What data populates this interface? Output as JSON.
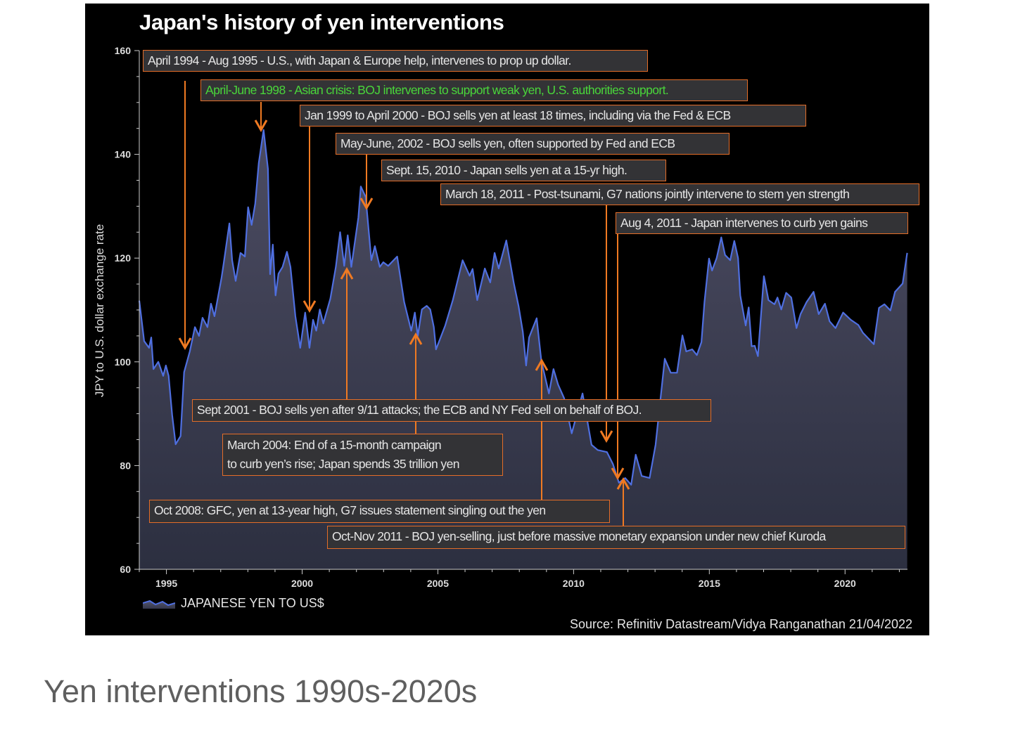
{
  "caption": "Yen interventions 1990s-2020s",
  "colors": {
    "background": "#000000",
    "line": "#4f6fe0",
    "area_top": "#4c4c62",
    "area_bottom": "#2c2f40",
    "annotation_border": "#e46d28",
    "arrow": "#f07a22",
    "highlight_text": "#49d53a"
  },
  "chart_data": {
    "type": "area",
    "title": "Japan's history of yen interventions",
    "ylabel": "JPY to U.S. dollar exchange rate",
    "xlabel": "",
    "xlim": [
      1994.0,
      2022.3
    ],
    "ylim": [
      60,
      160
    ],
    "x_ticks": [
      "1995",
      "2000",
      "2005",
      "2010",
      "2015",
      "2020"
    ],
    "y_ticks": [
      "60",
      "80",
      "100",
      "120",
      "140",
      "160"
    ],
    "grid": false,
    "legend": {
      "position": "bottom-left",
      "entries": [
        "JAPANESE YEN TO US$"
      ]
    },
    "source": "Source: Refinitiv Datastream/Vidya Ranganathan 21/04/2022",
    "series": [
      {
        "name": "JAPANESE YEN TO US$",
        "points": [
          [
            1994.0,
            111.8
          ],
          [
            1994.18,
            104
          ],
          [
            1994.36,
            102.7
          ],
          [
            1994.44,
            104.7
          ],
          [
            1994.52,
            98.6
          ],
          [
            1994.7,
            100
          ],
          [
            1994.88,
            97.3
          ],
          [
            1994.98,
            99.3
          ],
          [
            1995.08,
            97.3
          ],
          [
            1995.21,
            89.8
          ],
          [
            1995.34,
            84.1
          ],
          [
            1995.52,
            85.7
          ],
          [
            1995.65,
            98
          ],
          [
            1995.86,
            102
          ],
          [
            1996.05,
            106.7
          ],
          [
            1996.2,
            105
          ],
          [
            1996.33,
            108.5
          ],
          [
            1996.51,
            106.7
          ],
          [
            1996.64,
            111.2
          ],
          [
            1996.77,
            108.8
          ],
          [
            1997.03,
            116.2
          ],
          [
            1997.11,
            119
          ],
          [
            1997.32,
            126.7
          ],
          [
            1997.42,
            119.6
          ],
          [
            1997.55,
            115.6
          ],
          [
            1997.73,
            121
          ],
          [
            1997.89,
            120.3
          ],
          [
            1998.01,
            129.8
          ],
          [
            1998.14,
            126.4
          ],
          [
            1998.27,
            130.5
          ],
          [
            1998.4,
            138.3
          ],
          [
            1998.58,
            144.7
          ],
          [
            1998.74,
            137.2
          ],
          [
            1998.82,
            116.9
          ],
          [
            1998.92,
            122.6
          ],
          [
            1999.02,
            112.8
          ],
          [
            1999.13,
            117
          ],
          [
            1999.28,
            118.3
          ],
          [
            1999.44,
            121.2
          ],
          [
            1999.57,
            118.3
          ],
          [
            1999.75,
            108.8
          ],
          [
            1999.93,
            102.7
          ],
          [
            2000.11,
            109.5
          ],
          [
            2000.27,
            102.7
          ],
          [
            2000.4,
            108.1
          ],
          [
            2000.52,
            106
          ],
          [
            2000.65,
            110.1
          ],
          [
            2000.78,
            107.4
          ],
          [
            2001.04,
            112.2
          ],
          [
            2001.24,
            118.3
          ],
          [
            2001.4,
            125
          ],
          [
            2001.55,
            118.5
          ],
          [
            2001.68,
            124.4
          ],
          [
            2001.81,
            118.3
          ],
          [
            2002.07,
            127.8
          ],
          [
            2002.16,
            133.8
          ],
          [
            2002.34,
            131.8
          ],
          [
            2002.55,
            119.6
          ],
          [
            2002.68,
            122.3
          ],
          [
            2002.86,
            118.3
          ],
          [
            2002.99,
            119.2
          ],
          [
            2003.17,
            118.5
          ],
          [
            2003.5,
            120.3
          ],
          [
            2003.76,
            111.5
          ],
          [
            2004.02,
            106
          ],
          [
            2004.15,
            109.5
          ],
          [
            2004.26,
            105
          ],
          [
            2004.41,
            110.1
          ],
          [
            2004.59,
            110.8
          ],
          [
            2004.72,
            110.1
          ],
          [
            2004.85,
            106.7
          ],
          [
            2004.93,
            102.4
          ],
          [
            2005.27,
            107
          ],
          [
            2005.55,
            111.9
          ],
          [
            2005.91,
            119.6
          ],
          [
            2006.17,
            116.6
          ],
          [
            2006.28,
            117.9
          ],
          [
            2006.45,
            111.9
          ],
          [
            2006.73,
            118
          ],
          [
            2006.93,
            115.3
          ],
          [
            2007.09,
            121
          ],
          [
            2007.24,
            118
          ],
          [
            2007.52,
            123.4
          ],
          [
            2007.8,
            115.1
          ],
          [
            2007.97,
            110.8
          ],
          [
            2008.13,
            105.8
          ],
          [
            2008.25,
            99.3
          ],
          [
            2008.36,
            104.7
          ],
          [
            2008.64,
            108.4
          ],
          [
            2008.81,
            100.2
          ],
          [
            2009.09,
            93.9
          ],
          [
            2009.26,
            98.6
          ],
          [
            2009.43,
            95.6
          ],
          [
            2009.65,
            93
          ],
          [
            2009.93,
            86.2
          ],
          [
            2010.33,
            93.9
          ],
          [
            2010.66,
            84
          ],
          [
            2010.89,
            83
          ],
          [
            2011.23,
            82.6
          ],
          [
            2011.45,
            80.3
          ],
          [
            2011.67,
            76.7
          ],
          [
            2011.9,
            77.6
          ],
          [
            2012.12,
            76.3
          ],
          [
            2012.29,
            82.1
          ],
          [
            2012.51,
            78
          ],
          [
            2012.8,
            77.6
          ],
          [
            2013.02,
            84
          ],
          [
            2013.36,
            100.6
          ],
          [
            2013.58,
            97.9
          ],
          [
            2013.81,
            97.9
          ],
          [
            2014.01,
            105.1
          ],
          [
            2014.15,
            102
          ],
          [
            2014.37,
            102.4
          ],
          [
            2014.54,
            101.3
          ],
          [
            2014.71,
            103.8
          ],
          [
            2014.82,
            111.5
          ],
          [
            2014.99,
            119.9
          ],
          [
            2015.1,
            117.6
          ],
          [
            2015.27,
            120
          ],
          [
            2015.44,
            124
          ],
          [
            2015.58,
            120.6
          ],
          [
            2015.77,
            119.6
          ],
          [
            2015.92,
            123.3
          ],
          [
            2016.06,
            120
          ],
          [
            2016.14,
            112.8
          ],
          [
            2016.34,
            107
          ],
          [
            2016.45,
            110.5
          ],
          [
            2016.56,
            103
          ],
          [
            2016.67,
            103.1
          ],
          [
            2016.79,
            101.1
          ],
          [
            2017.01,
            116.5
          ],
          [
            2017.18,
            111.9
          ],
          [
            2017.4,
            111.1
          ],
          [
            2017.51,
            112.4
          ],
          [
            2017.65,
            110.1
          ],
          [
            2017.83,
            113.3
          ],
          [
            2018.02,
            112.4
          ],
          [
            2018.21,
            106.5
          ],
          [
            2018.36,
            109.2
          ],
          [
            2018.58,
            111.5
          ],
          [
            2018.84,
            113.5
          ],
          [
            2019.03,
            109.2
          ],
          [
            2019.26,
            111.2
          ],
          [
            2019.43,
            107.8
          ],
          [
            2019.65,
            106.5
          ],
          [
            2019.93,
            109.5
          ],
          [
            2020.21,
            108.1
          ],
          [
            2020.49,
            107.1
          ],
          [
            2020.66,
            105.6
          ],
          [
            2021.06,
            103.4
          ],
          [
            2021.25,
            110.4
          ],
          [
            2021.45,
            111.1
          ],
          [
            2021.67,
            109.9
          ],
          [
            2021.84,
            113.5
          ],
          [
            2022.12,
            115.1
          ],
          [
            2022.29,
            121
          ]
        ]
      }
    ],
    "annotations": [
      "April 1994 - Aug 1995 - U.S., with Japan & Europe help, intervenes to prop up dollar.",
      "April-June 1998 - Asian crisis: BOJ intervenes to support weak yen, U.S. authorities support.",
      "Jan 1999 to April 2000 - BOJ sells yen at least 18 times, including via the Fed & ECB",
      "May-June, 2002 - BOJ sells yen, often supported by Fed and ECB",
      "Sept. 15, 2010 - Japan sells yen at a 15-yr high.",
      "March 18, 2011 - Post-tsunami, G7 nations jointly intervene to stem yen strength",
      "Aug 4, 2011 - Japan intervenes to curb yen gains",
      "Sept 2001 - BOJ sells yen after 9/11 attacks; the ECB and NY Fed sell on behalf of BOJ.",
      "March 2004: End of a 15-month campaign",
      "to curb yen’s rise; Japan spends 35 trillion yen",
      "Oct 2008: GFC, yen at 13-year high, G7 issues statement singling out the yen",
      "Oct-Nov 2011 - BOJ yen-selling, just before massive monetary expansion under new chief Kuroda"
    ]
  }
}
